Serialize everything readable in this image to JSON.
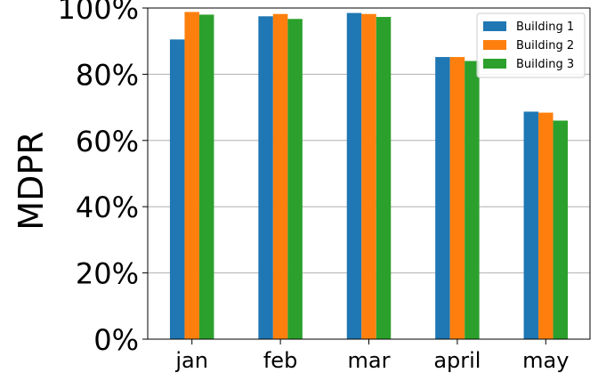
{
  "chart_data": {
    "type": "bar",
    "title": "",
    "xlabel": "",
    "ylabel": "MDPR",
    "categories": [
      "jan",
      "feb",
      "mar",
      "april",
      "may"
    ],
    "series": [
      {
        "name": "Building 1",
        "color": "#1f77b4",
        "values": [
          90.5,
          97.5,
          98.5,
          85.2,
          68.7
        ]
      },
      {
        "name": "Building 2",
        "color": "#ff7f0e",
        "values": [
          98.8,
          98.2,
          98.2,
          85.2,
          68.4
        ]
      },
      {
        "name": "Building 3",
        "color": "#2ca02c",
        "values": [
          98.0,
          96.7,
          97.3,
          84.0,
          66.0
        ]
      }
    ],
    "ylim": [
      0,
      100
    ],
    "yticks": [
      "0%",
      "20%",
      "40%",
      "60%",
      "80%",
      "100%"
    ],
    "grid": "y",
    "legend": "top-right"
  }
}
